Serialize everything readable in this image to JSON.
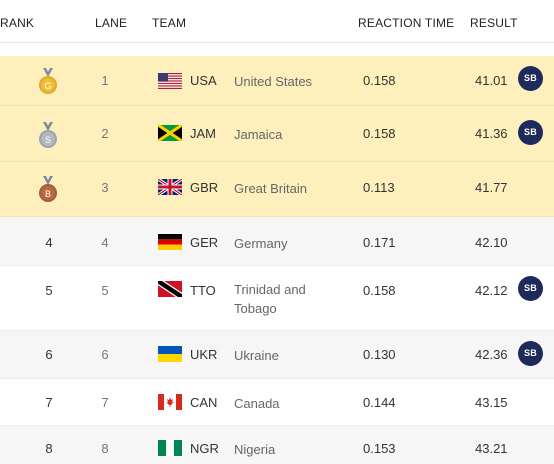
{
  "header": {
    "rank": "RANK",
    "lane": "LANE",
    "team": "TEAM",
    "reaction_time": "REACTION TIME",
    "result": "RESULT"
  },
  "colors": {
    "medal_row_bg": "#fdf0bd",
    "gold": "#e0a92c",
    "silver": "#9ea3a8",
    "bronze": "#a85a3b",
    "badge": "#1f2a5c"
  },
  "rows": [
    {
      "rank_icon": "gold-medal-icon",
      "medal_letter": "G",
      "lane": "1",
      "code": "USA",
      "country": "United States",
      "reaction": "0.158",
      "result": "41.01",
      "badge": "SB"
    },
    {
      "rank_icon": "silver-medal-icon",
      "medal_letter": "S",
      "lane": "2",
      "code": "JAM",
      "country": "Jamaica",
      "reaction": "0.158",
      "result": "41.36",
      "badge": "SB"
    },
    {
      "rank_icon": "bronze-medal-icon",
      "medal_letter": "B",
      "lane": "3",
      "code": "GBR",
      "country": "Great Britain",
      "reaction": "0.113",
      "result": "41.77",
      "badge": ""
    },
    {
      "rank": "4",
      "lane": "4",
      "code": "GER",
      "country": "Germany",
      "reaction": "0.171",
      "result": "42.10",
      "badge": ""
    },
    {
      "rank": "5",
      "lane": "5",
      "code": "TTO",
      "country": "Trinidad and Tobago",
      "reaction": "0.158",
      "result": "42.12",
      "badge": "SB"
    },
    {
      "rank": "6",
      "lane": "6",
      "code": "UKR",
      "country": "Ukraine",
      "reaction": "0.130",
      "result": "42.36",
      "badge": "SB"
    },
    {
      "rank": "7",
      "lane": "7",
      "code": "CAN",
      "country": "Canada",
      "reaction": "0.144",
      "result": "43.15",
      "badge": ""
    },
    {
      "rank": "8",
      "lane": "8",
      "code": "NGR",
      "country": "Nigeria",
      "reaction": "0.153",
      "result": "43.21",
      "badge": ""
    }
  ]
}
